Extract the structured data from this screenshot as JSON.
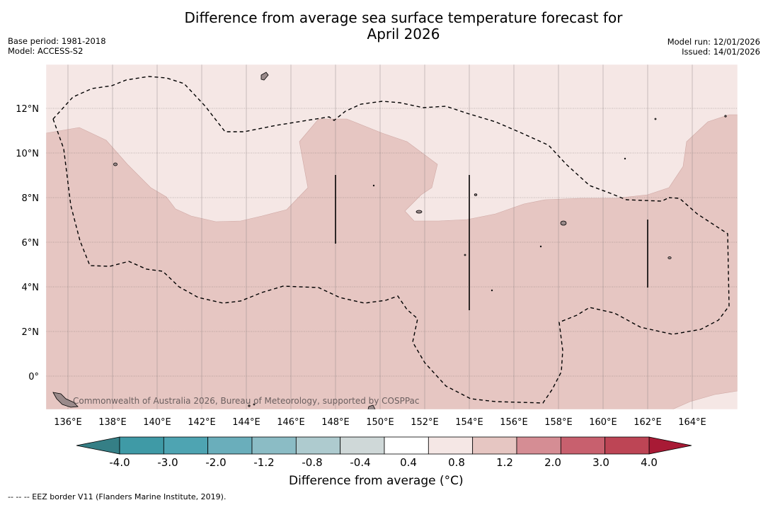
{
  "header": {
    "title_line1": "Difference from average sea surface temperature forecast for",
    "title_line2": "April 2026",
    "base_period": "Base period: 1981-2018",
    "model": "Model: ACCESS-S2",
    "model_run": "Model run: 12/01/2026",
    "issued": "Issued: 14/01/2026"
  },
  "map": {
    "lon_labels": [
      "136°E",
      "138°E",
      "140°E",
      "142°E",
      "144°E",
      "146°E",
      "148°E",
      "150°E",
      "152°E",
      "154°E",
      "156°E",
      "158°E",
      "160°E",
      "162°E",
      "164°E"
    ],
    "lat_labels": [
      "12°N",
      "10°N",
      "8°N",
      "6°N",
      "4°N",
      "2°N",
      "0°"
    ],
    "watermark": "Commonwealth of Australia 2026, Bureau of Meteorology, supported by COSPPac",
    "fill_colors": {
      "band_0_4_0_8": "#f5e7e5",
      "band_0_8_1_2": "#e6c6c2",
      "land": "#9a8a8a"
    }
  },
  "colorbar": {
    "tick_labels": [
      "-4.0",
      "-3.0",
      "-2.0",
      "-1.2",
      "-0.8",
      "-0.4",
      "0.4",
      "0.8",
      "1.2",
      "2.0",
      "3.0",
      "4.0"
    ],
    "colors": [
      "#3f9aa6",
      "#4ea4b2",
      "#6aaebb",
      "#8bbcc5",
      "#aecbcf",
      "#cfd8d8",
      "#ffffff",
      "#f5e7e5",
      "#e6c6c2",
      "#d58d94",
      "#c8606e",
      "#bd4555"
    ],
    "under_color": "#357f86",
    "over_color": "#a81a35",
    "label": "Difference from average (°C)"
  },
  "footnote": "--  --  -- EEZ border V11 (Flanders Marine Institute, 2019)."
}
